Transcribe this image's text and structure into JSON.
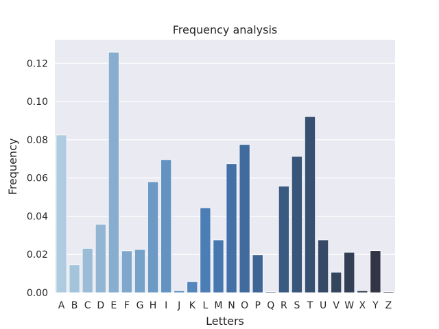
{
  "chart_data": {
    "type": "bar",
    "title": "Frequency analysis",
    "xlabel": "Letters",
    "ylabel": "Frequency",
    "ylim": [
      0,
      0.1323
    ],
    "yticks": [
      0.0,
      0.02,
      0.04,
      0.06,
      0.08,
      0.1,
      0.12
    ],
    "ytick_labels": [
      "0.00",
      "0.02",
      "0.04",
      "0.06",
      "0.08",
      "0.10",
      "0.12"
    ],
    "grid": true,
    "background_color": "#eaeaf2",
    "grid_color": "#ffffff",
    "palette": "Blues_d",
    "categories": [
      "A",
      "B",
      "C",
      "D",
      "E",
      "F",
      "G",
      "H",
      "I",
      "J",
      "K",
      "L",
      "M",
      "N",
      "O",
      "P",
      "Q",
      "R",
      "S",
      "T",
      "U",
      "V",
      "W",
      "X",
      "Y",
      "Z"
    ],
    "values": [
      0.0825,
      0.0145,
      0.0232,
      0.0358,
      0.1258,
      0.0219,
      0.0226,
      0.058,
      0.0696,
      0.001,
      0.0058,
      0.0444,
      0.0276,
      0.0675,
      0.0775,
      0.0198,
      0.0005,
      0.0557,
      0.0713,
      0.0921,
      0.0276,
      0.0107,
      0.0211,
      0.001,
      0.022,
      0.0005
    ],
    "bar_colors": [
      "#aecbdf",
      "#a4c4db",
      "#9abcd7",
      "#91b5d3",
      "#87aecf",
      "#7ea7cb",
      "#76a1c8",
      "#6d9ac5",
      "#6493c2",
      "#5c8cbf",
      "#5485bb",
      "#4c7eb6",
      "#4677ae",
      "#4370a6",
      "#416b9d",
      "#3f6594",
      "#3d608b",
      "#3b5a82",
      "#395579",
      "#374f70",
      "#364a67",
      "#34455e",
      "#333f55",
      "#31394c",
      "#303444",
      "#2f2f3b"
    ]
  }
}
